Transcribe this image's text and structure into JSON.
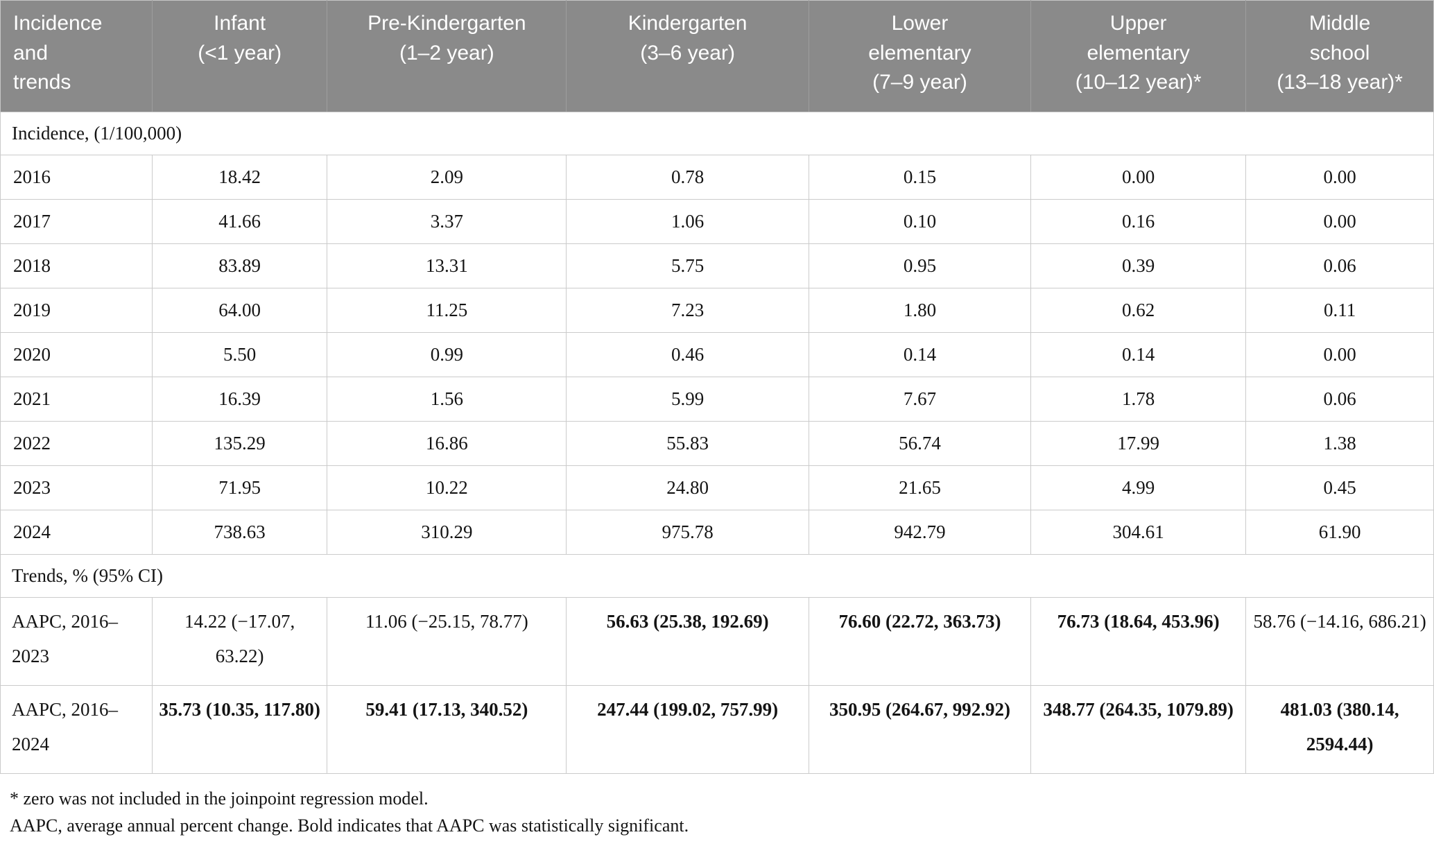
{
  "colors": {
    "header_background": "#8a8a8a",
    "header_text": "#ffffff",
    "grid_border": "#cbcbcb",
    "body_text": "#141414"
  },
  "table": {
    "header": [
      "Incidence\nand\ntrends",
      "Infant\n(<1 year)",
      "Pre-Kindergarten\n(1–2 year)",
      "Kindergarten\n(3–6 year)",
      "Lower\nelementary\n(7–9 year)",
      "Upper\nelementary\n(10–12 year)*",
      "Middle\nschool\n(13–18 year)*"
    ],
    "section_incidence": "Incidence, (1/100,000)",
    "incidence_rows": [
      {
        "year": "2016",
        "values": [
          "18.42",
          "2.09",
          "0.78",
          "0.15",
          "0.00",
          "0.00"
        ]
      },
      {
        "year": "2017",
        "values": [
          "41.66",
          "3.37",
          "1.06",
          "0.10",
          "0.16",
          "0.00"
        ]
      },
      {
        "year": "2018",
        "values": [
          "83.89",
          "13.31",
          "5.75",
          "0.95",
          "0.39",
          "0.06"
        ]
      },
      {
        "year": "2019",
        "values": [
          "64.00",
          "11.25",
          "7.23",
          "1.80",
          "0.62",
          "0.11"
        ]
      },
      {
        "year": "2020",
        "values": [
          "5.50",
          "0.99",
          "0.46",
          "0.14",
          "0.14",
          "0.00"
        ]
      },
      {
        "year": "2021",
        "values": [
          "16.39",
          "1.56",
          "5.99",
          "7.67",
          "1.78",
          "0.06"
        ]
      },
      {
        "year": "2022",
        "values": [
          "135.29",
          "16.86",
          "55.83",
          "56.74",
          "17.99",
          "1.38"
        ]
      },
      {
        "year": "2023",
        "values": [
          "71.95",
          "10.22",
          "24.80",
          "21.65",
          "4.99",
          "0.45"
        ]
      },
      {
        "year": "2024",
        "values": [
          "738.63",
          "310.29",
          "975.78",
          "942.79",
          "304.61",
          "61.90"
        ]
      }
    ],
    "section_trends": "Trends, % (95% CI)",
    "trend_rows": [
      {
        "label": "AAPC, 2016–2023",
        "values": [
          {
            "text": "14.22 (−17.07, 63.22)",
            "bold": false
          },
          {
            "text": "11.06 (−25.15, 78.77)",
            "bold": false
          },
          {
            "text": "56.63 (25.38, 192.69)",
            "bold": true
          },
          {
            "text": "76.60 (22.72, 363.73)",
            "bold": true
          },
          {
            "text": "76.73 (18.64, 453.96)",
            "bold": true
          },
          {
            "text": "58.76 (−14.16, 686.21)",
            "bold": false
          }
        ]
      },
      {
        "label": "AAPC, 2016–2024",
        "values": [
          {
            "text": "35.73 (10.35, 117.80)",
            "bold": true
          },
          {
            "text": "59.41 (17.13, 340.52)",
            "bold": true
          },
          {
            "text": "247.44 (199.02, 757.99)",
            "bold": true
          },
          {
            "text": "350.95 (264.67, 992.92)",
            "bold": true
          },
          {
            "text": "348.77 (264.35, 1079.89)",
            "bold": true
          },
          {
            "text": "481.03 (380.14, 2594.44)",
            "bold": true
          }
        ]
      }
    ],
    "footnotes": [
      "* zero was not included in the joinpoint regression model.",
      "AAPC, average annual percent change. Bold indicates that AAPC was statistically significant."
    ]
  }
}
